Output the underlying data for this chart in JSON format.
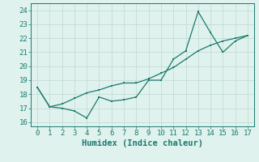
{
  "xlabel": "Humidex (Indice chaleur)",
  "xlim": [
    -0.5,
    17.5
  ],
  "ylim": [
    15.7,
    24.5
  ],
  "yticks": [
    16,
    17,
    18,
    19,
    20,
    21,
    22,
    23,
    24
  ],
  "xticks": [
    0,
    1,
    2,
    3,
    4,
    5,
    6,
    7,
    8,
    9,
    10,
    11,
    12,
    13,
    14,
    15,
    16,
    17
  ],
  "line1_x": [
    0,
    1,
    2,
    3,
    4,
    5,
    6,
    7,
    8,
    9,
    10,
    11,
    12,
    13,
    14,
    15,
    16,
    17
  ],
  "line1_y": [
    18.5,
    17.1,
    17.0,
    16.8,
    16.3,
    17.8,
    17.5,
    17.6,
    17.8,
    19.0,
    19.0,
    20.5,
    21.1,
    23.9,
    22.4,
    21.0,
    21.8,
    22.2
  ],
  "line2_x": [
    0,
    1,
    2,
    3,
    4,
    5,
    6,
    7,
    8,
    9,
    10,
    11,
    12,
    13,
    14,
    15,
    16,
    17
  ],
  "line2_y": [
    18.5,
    17.1,
    17.3,
    17.7,
    18.1,
    18.3,
    18.6,
    18.8,
    18.8,
    19.1,
    19.5,
    19.9,
    20.5,
    21.1,
    21.5,
    21.8,
    22.0,
    22.2
  ],
  "line_color": "#1a7a6e",
  "bg_color": "#dff2ee",
  "grid_color": "#c0d8d2",
  "tick_fontsize": 6.5,
  "xlabel_fontsize": 7.5
}
